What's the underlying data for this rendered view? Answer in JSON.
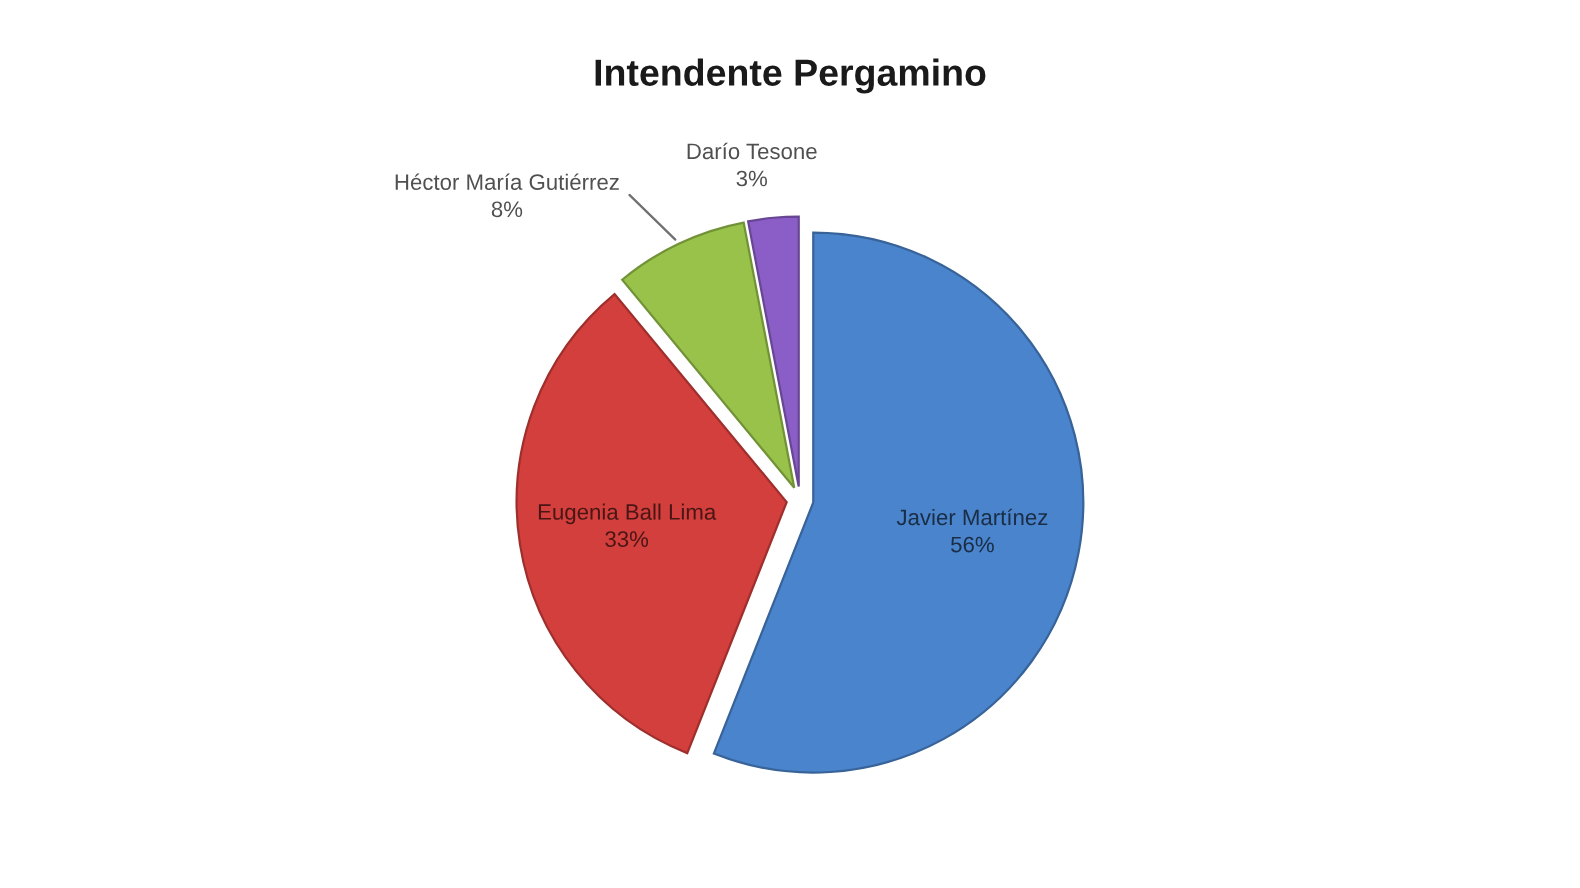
{
  "chart_data": {
    "type": "pie",
    "title": "Intendente Pergamino",
    "categories": [
      "Javier Martínez",
      "Eugenia Ball Lima",
      "Héctor María Gutiérrez",
      "Darío Tesone"
    ],
    "values": [
      56,
      33,
      8,
      3
    ],
    "value_labels": [
      "56%",
      "33%",
      "8%",
      "3%"
    ],
    "colors": [
      "#4a84cc",
      "#d23f3c",
      "#98c24a",
      "#8a5ec6"
    ]
  }
}
